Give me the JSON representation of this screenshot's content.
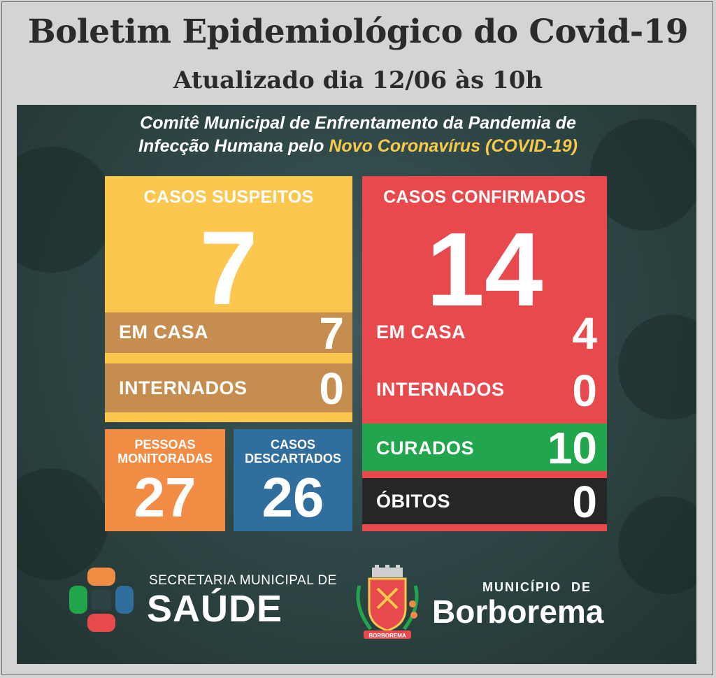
{
  "header": {
    "title": "Boletim Epidemiológico do Covid-19",
    "subtitle": "Atualizado dia 12/06 às 10h"
  },
  "committee": {
    "line1": "Comitê Municipal de Enfrentamento da Pandemia de",
    "line2_prefix": "Infecção Humana pelo ",
    "line2_highlight": "Novo Coronavírus (COVID-19)"
  },
  "suspeitos": {
    "label": "CASOS SUSPEITOS",
    "total": "7",
    "em_casa_label": "EM CASA",
    "em_casa": "7",
    "internados_label": "INTERNADOS",
    "internados": "0"
  },
  "confirmados": {
    "label": "CASOS CONFIRMADOS",
    "total": "14",
    "em_casa_label": "EM CASA",
    "em_casa": "4",
    "internados_label": "INTERNADOS",
    "internados": "0",
    "curados_label": "CURADOS",
    "curados": "10",
    "obitos_label": "ÓBITOS",
    "obitos": "0"
  },
  "monitoradas": {
    "label_line1": "PESSOAS",
    "label_line2": "MONITORADAS",
    "value": "27"
  },
  "descartados": {
    "label_line1": "CASOS",
    "label_line2": "DESCARTADOS",
    "value": "26"
  },
  "footer": {
    "saude_small": "SECRETARIA MUNICIPAL DE",
    "saude_big": "SAÚDE",
    "municipio": "MUNICÍPIO  DE",
    "city": "Borborema",
    "crest_text": "BORBOREMA"
  },
  "colors": {
    "yellow": "#fcc74e",
    "brown": "#c58d4e",
    "red": "#e8494c",
    "green": "#21a64e",
    "black": "#262626",
    "orange": "#f28c45",
    "blue": "#2f6e9d",
    "panel": "#2c4443"
  }
}
